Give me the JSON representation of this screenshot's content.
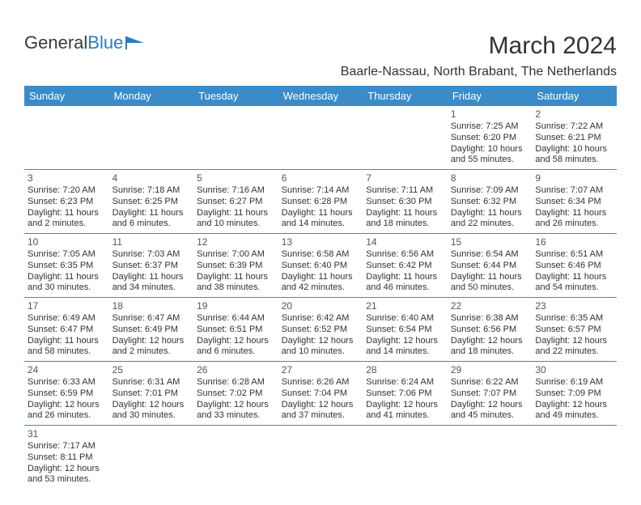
{
  "logo": {
    "text1": "General",
    "text2": "Blue"
  },
  "title": "March 2024",
  "location": "Baarle-Nassau, North Brabant, The Netherlands",
  "header_bg": "#3b8bc9",
  "border_color": "#3b8bc9",
  "weekdays": [
    "Sunday",
    "Monday",
    "Tuesday",
    "Wednesday",
    "Thursday",
    "Friday",
    "Saturday"
  ],
  "weeks": [
    [
      null,
      null,
      null,
      null,
      null,
      {
        "n": "1",
        "sr": "Sunrise: 7:25 AM",
        "ss": "Sunset: 6:20 PM",
        "dl1": "Daylight: 10 hours",
        "dl2": "and 55 minutes."
      },
      {
        "n": "2",
        "sr": "Sunrise: 7:22 AM",
        "ss": "Sunset: 6:21 PM",
        "dl1": "Daylight: 10 hours",
        "dl2": "and 58 minutes."
      }
    ],
    [
      {
        "n": "3",
        "sr": "Sunrise: 7:20 AM",
        "ss": "Sunset: 6:23 PM",
        "dl1": "Daylight: 11 hours",
        "dl2": "and 2 minutes."
      },
      {
        "n": "4",
        "sr": "Sunrise: 7:18 AM",
        "ss": "Sunset: 6:25 PM",
        "dl1": "Daylight: 11 hours",
        "dl2": "and 6 minutes."
      },
      {
        "n": "5",
        "sr": "Sunrise: 7:16 AM",
        "ss": "Sunset: 6:27 PM",
        "dl1": "Daylight: 11 hours",
        "dl2": "and 10 minutes."
      },
      {
        "n": "6",
        "sr": "Sunrise: 7:14 AM",
        "ss": "Sunset: 6:28 PM",
        "dl1": "Daylight: 11 hours",
        "dl2": "and 14 minutes."
      },
      {
        "n": "7",
        "sr": "Sunrise: 7:11 AM",
        "ss": "Sunset: 6:30 PM",
        "dl1": "Daylight: 11 hours",
        "dl2": "and 18 minutes."
      },
      {
        "n": "8",
        "sr": "Sunrise: 7:09 AM",
        "ss": "Sunset: 6:32 PM",
        "dl1": "Daylight: 11 hours",
        "dl2": "and 22 minutes."
      },
      {
        "n": "9",
        "sr": "Sunrise: 7:07 AM",
        "ss": "Sunset: 6:34 PM",
        "dl1": "Daylight: 11 hours",
        "dl2": "and 26 minutes."
      }
    ],
    [
      {
        "n": "10",
        "sr": "Sunrise: 7:05 AM",
        "ss": "Sunset: 6:35 PM",
        "dl1": "Daylight: 11 hours",
        "dl2": "and 30 minutes."
      },
      {
        "n": "11",
        "sr": "Sunrise: 7:03 AM",
        "ss": "Sunset: 6:37 PM",
        "dl1": "Daylight: 11 hours",
        "dl2": "and 34 minutes."
      },
      {
        "n": "12",
        "sr": "Sunrise: 7:00 AM",
        "ss": "Sunset: 6:39 PM",
        "dl1": "Daylight: 11 hours",
        "dl2": "and 38 minutes."
      },
      {
        "n": "13",
        "sr": "Sunrise: 6:58 AM",
        "ss": "Sunset: 6:40 PM",
        "dl1": "Daylight: 11 hours",
        "dl2": "and 42 minutes."
      },
      {
        "n": "14",
        "sr": "Sunrise: 6:56 AM",
        "ss": "Sunset: 6:42 PM",
        "dl1": "Daylight: 11 hours",
        "dl2": "and 46 minutes."
      },
      {
        "n": "15",
        "sr": "Sunrise: 6:54 AM",
        "ss": "Sunset: 6:44 PM",
        "dl1": "Daylight: 11 hours",
        "dl2": "and 50 minutes."
      },
      {
        "n": "16",
        "sr": "Sunrise: 6:51 AM",
        "ss": "Sunset: 6:46 PM",
        "dl1": "Daylight: 11 hours",
        "dl2": "and 54 minutes."
      }
    ],
    [
      {
        "n": "17",
        "sr": "Sunrise: 6:49 AM",
        "ss": "Sunset: 6:47 PM",
        "dl1": "Daylight: 11 hours",
        "dl2": "and 58 minutes."
      },
      {
        "n": "18",
        "sr": "Sunrise: 6:47 AM",
        "ss": "Sunset: 6:49 PM",
        "dl1": "Daylight: 12 hours",
        "dl2": "and 2 minutes."
      },
      {
        "n": "19",
        "sr": "Sunrise: 6:44 AM",
        "ss": "Sunset: 6:51 PM",
        "dl1": "Daylight: 12 hours",
        "dl2": "and 6 minutes."
      },
      {
        "n": "20",
        "sr": "Sunrise: 6:42 AM",
        "ss": "Sunset: 6:52 PM",
        "dl1": "Daylight: 12 hours",
        "dl2": "and 10 minutes."
      },
      {
        "n": "21",
        "sr": "Sunrise: 6:40 AM",
        "ss": "Sunset: 6:54 PM",
        "dl1": "Daylight: 12 hours",
        "dl2": "and 14 minutes."
      },
      {
        "n": "22",
        "sr": "Sunrise: 6:38 AM",
        "ss": "Sunset: 6:56 PM",
        "dl1": "Daylight: 12 hours",
        "dl2": "and 18 minutes."
      },
      {
        "n": "23",
        "sr": "Sunrise: 6:35 AM",
        "ss": "Sunset: 6:57 PM",
        "dl1": "Daylight: 12 hours",
        "dl2": "and 22 minutes."
      }
    ],
    [
      {
        "n": "24",
        "sr": "Sunrise: 6:33 AM",
        "ss": "Sunset: 6:59 PM",
        "dl1": "Daylight: 12 hours",
        "dl2": "and 26 minutes."
      },
      {
        "n": "25",
        "sr": "Sunrise: 6:31 AM",
        "ss": "Sunset: 7:01 PM",
        "dl1": "Daylight: 12 hours",
        "dl2": "and 30 minutes."
      },
      {
        "n": "26",
        "sr": "Sunrise: 6:28 AM",
        "ss": "Sunset: 7:02 PM",
        "dl1": "Daylight: 12 hours",
        "dl2": "and 33 minutes."
      },
      {
        "n": "27",
        "sr": "Sunrise: 6:26 AM",
        "ss": "Sunset: 7:04 PM",
        "dl1": "Daylight: 12 hours",
        "dl2": "and 37 minutes."
      },
      {
        "n": "28",
        "sr": "Sunrise: 6:24 AM",
        "ss": "Sunset: 7:06 PM",
        "dl1": "Daylight: 12 hours",
        "dl2": "and 41 minutes."
      },
      {
        "n": "29",
        "sr": "Sunrise: 6:22 AM",
        "ss": "Sunset: 7:07 PM",
        "dl1": "Daylight: 12 hours",
        "dl2": "and 45 minutes."
      },
      {
        "n": "30",
        "sr": "Sunrise: 6:19 AM",
        "ss": "Sunset: 7:09 PM",
        "dl1": "Daylight: 12 hours",
        "dl2": "and 49 minutes."
      }
    ],
    [
      {
        "n": "31",
        "sr": "Sunrise: 7:17 AM",
        "ss": "Sunset: 8:11 PM",
        "dl1": "Daylight: 12 hours",
        "dl2": "and 53 minutes."
      },
      null,
      null,
      null,
      null,
      null,
      null
    ]
  ]
}
